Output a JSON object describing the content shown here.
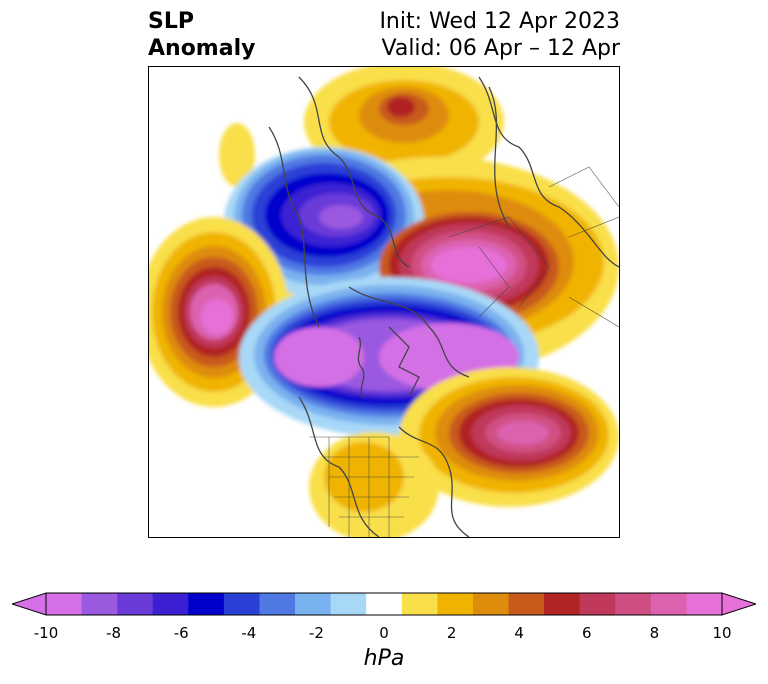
{
  "header": {
    "title_line1": "SLP",
    "title_line2": "Anomaly",
    "init_text": "Init: Wed 12 Apr 2023",
    "valid_text": "Valid: 06 Apr – 12 Apr"
  },
  "map": {
    "projection": "north-polar-stereographic",
    "features": [
      "coastlines",
      "country-borders",
      "us-state-borders",
      "filled-anomaly-contours"
    ]
  },
  "colorbar": {
    "unit": "hPa",
    "extend": "both",
    "ticks": [
      "-10",
      "-8",
      "-6",
      "-4",
      "-2",
      "0",
      "2",
      "4",
      "6",
      "8",
      "10"
    ],
    "colors": [
      "#d46fe6",
      "#9b59e0",
      "#6a3bd9",
      "#3a20d2",
      "#0000cc",
      "#2a3fd6",
      "#4f78e3",
      "#7ab1ef",
      "#a8d8f7",
      "#ffffff",
      "#f9df4a",
      "#f0b400",
      "#de8c0c",
      "#c85a1a",
      "#b02424",
      "#c0385a",
      "#d04f82",
      "#dc62b0",
      "#e670d8"
    ],
    "min_color": "#d46fe6",
    "max_color": "#e670d8"
  }
}
